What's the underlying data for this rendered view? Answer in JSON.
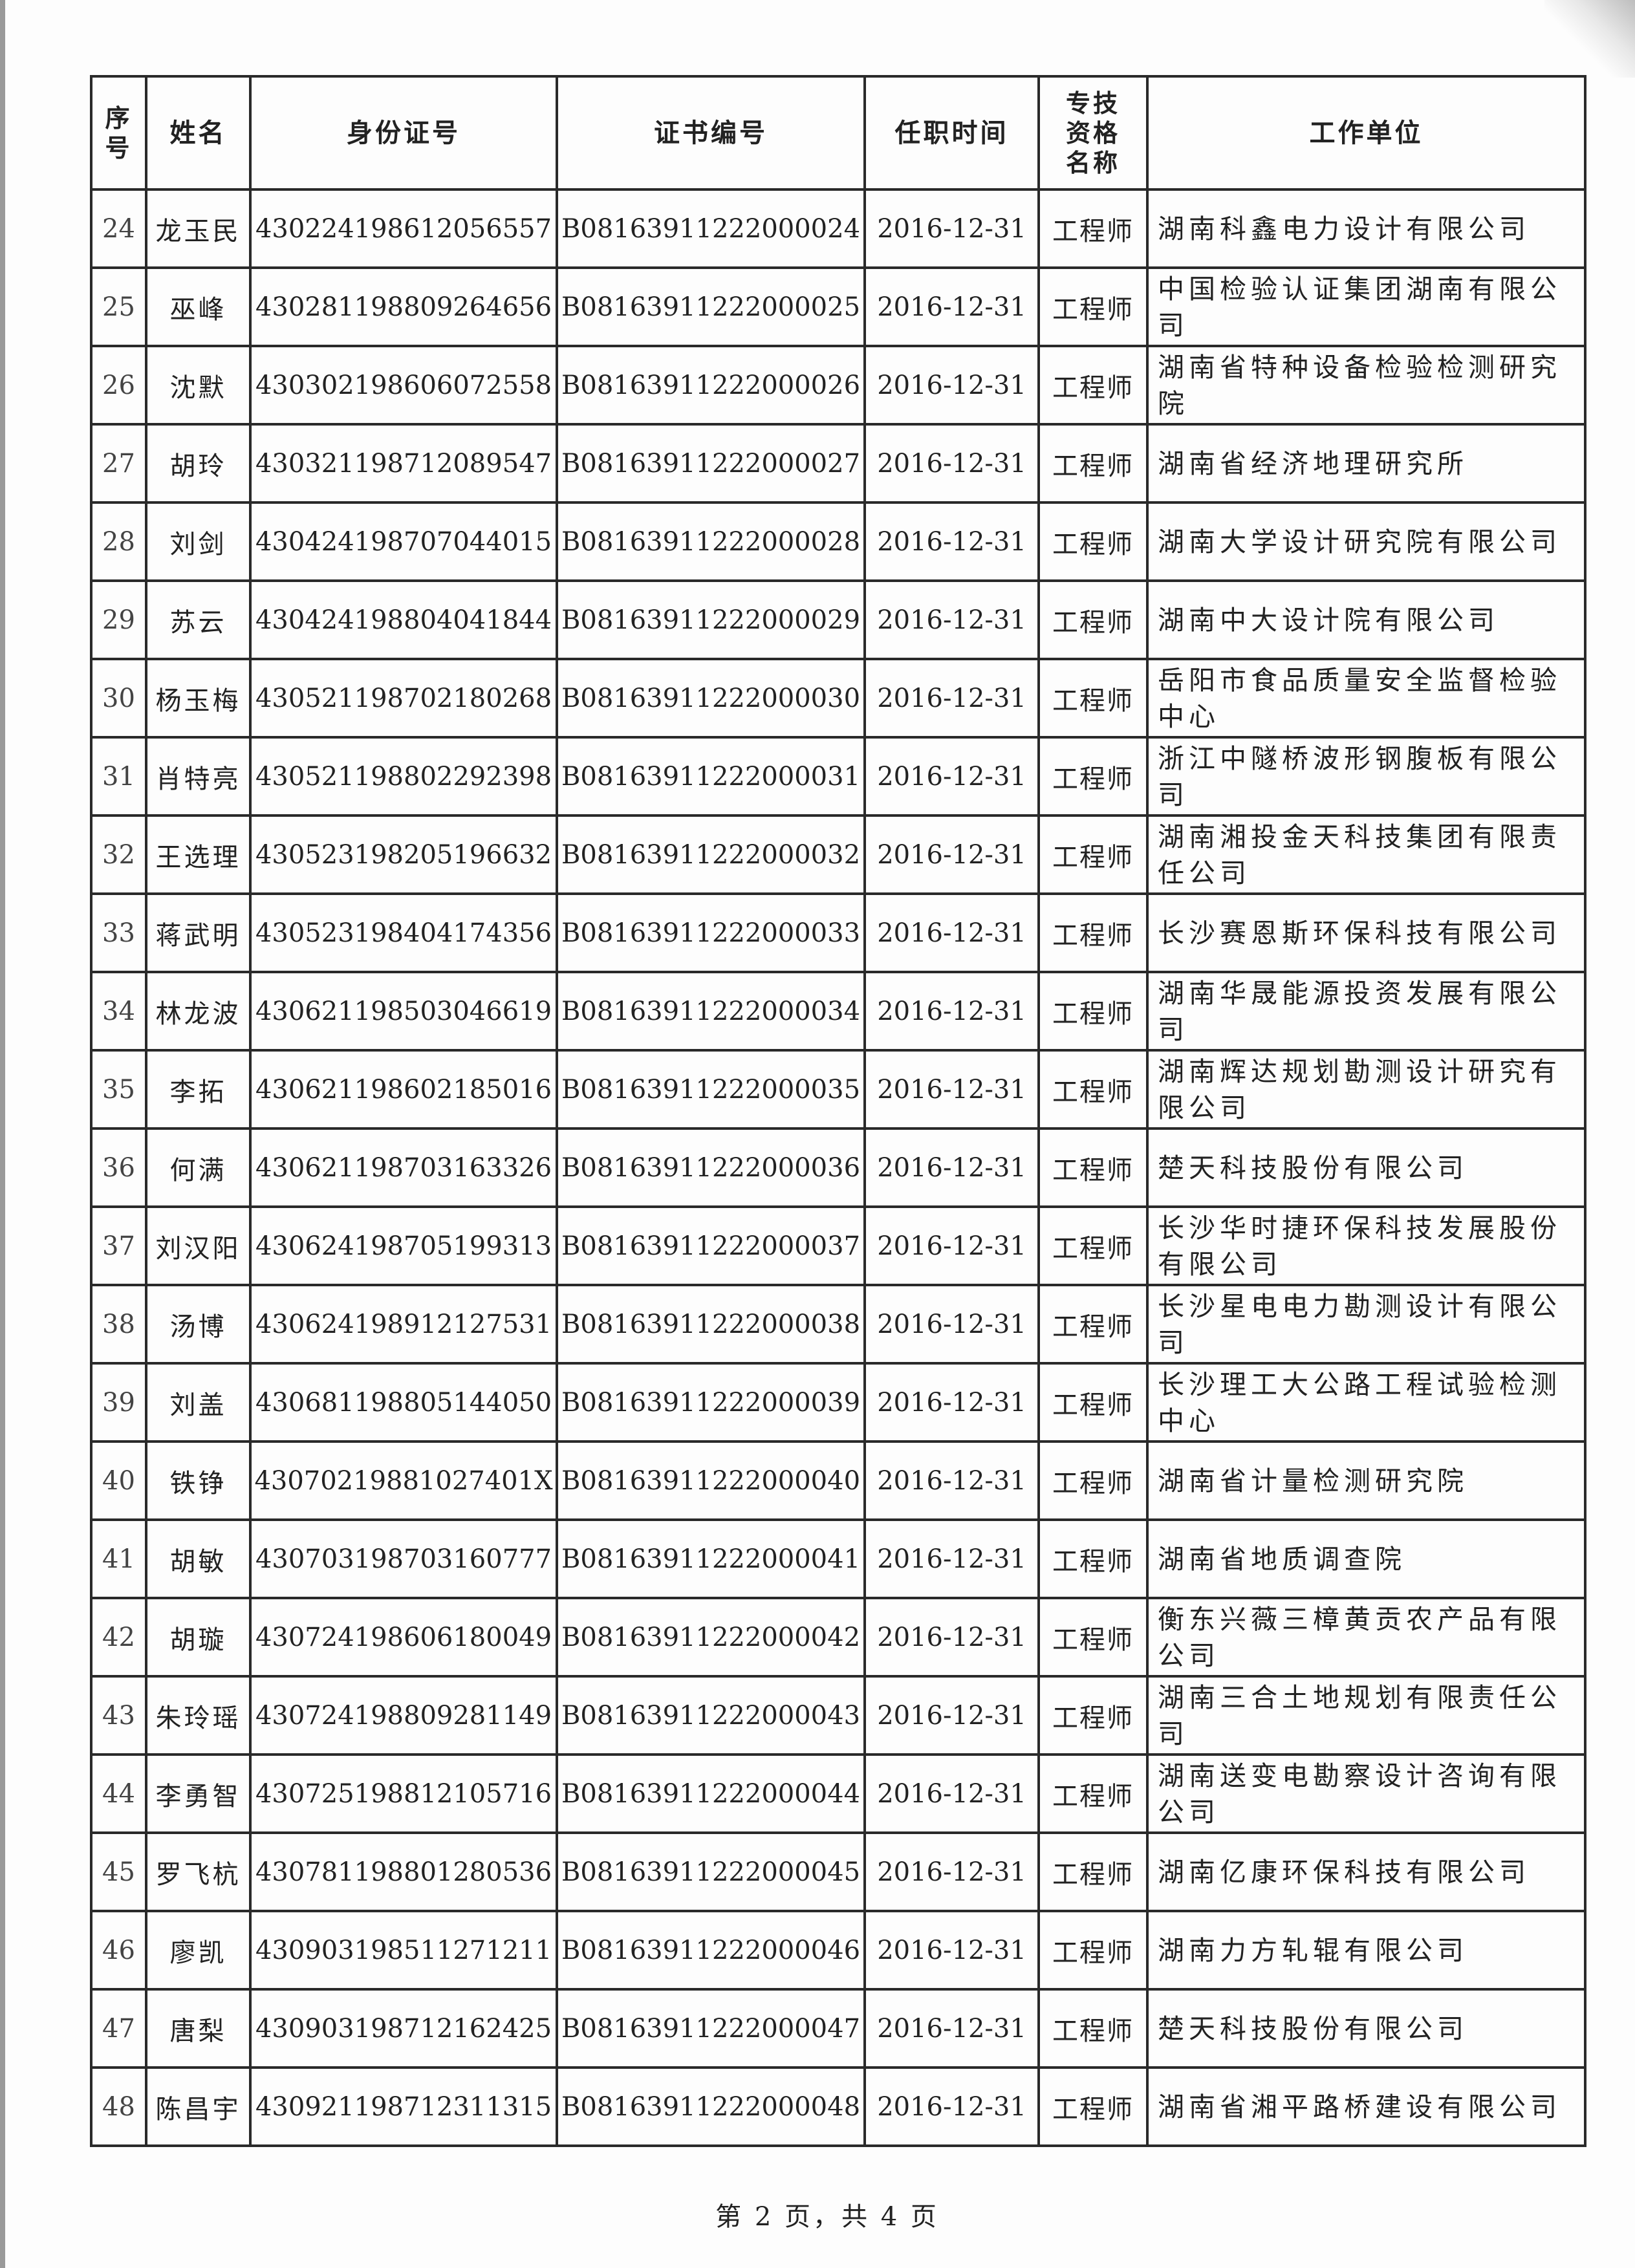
{
  "table": {
    "headers": {
      "seq": "序号",
      "name": "姓名",
      "id_number": "身份证号",
      "cert_number": "证书编号",
      "appointment_date": "任职时间",
      "qualification": "专技资格名称",
      "workplace": "工作单位"
    },
    "rows": [
      {
        "seq": "24",
        "name": "龙玉民",
        "id_number": "430224198612056557",
        "cert_number": "B08163911222000024",
        "appointment_date": "2016-12-31",
        "qualification": "工程师",
        "workplace": "湖南科鑫电力设计有限公司"
      },
      {
        "seq": "25",
        "name": "巫峰",
        "id_number": "430281198809264656",
        "cert_number": "B08163911222000025",
        "appointment_date": "2016-12-31",
        "qualification": "工程师",
        "workplace": "中国检验认证集团湖南有限公司"
      },
      {
        "seq": "26",
        "name": "沈默",
        "id_number": "430302198606072558",
        "cert_number": "B08163911222000026",
        "appointment_date": "2016-12-31",
        "qualification": "工程师",
        "workplace": "湖南省特种设备检验检测研究院"
      },
      {
        "seq": "27",
        "name": "胡玲",
        "id_number": "430321198712089547",
        "cert_number": "B08163911222000027",
        "appointment_date": "2016-12-31",
        "qualification": "工程师",
        "workplace": "湖南省经济地理研究所"
      },
      {
        "seq": "28",
        "name": "刘剑",
        "id_number": "430424198707044015",
        "cert_number": "B08163911222000028",
        "appointment_date": "2016-12-31",
        "qualification": "工程师",
        "workplace": "湖南大学设计研究院有限公司"
      },
      {
        "seq": "29",
        "name": "苏云",
        "id_number": "430424198804041844",
        "cert_number": "B08163911222000029",
        "appointment_date": "2016-12-31",
        "qualification": "工程师",
        "workplace": "湖南中大设计院有限公司"
      },
      {
        "seq": "30",
        "name": "杨玉梅",
        "id_number": "430521198702180268",
        "cert_number": "B08163911222000030",
        "appointment_date": "2016-12-31",
        "qualification": "工程师",
        "workplace": "岳阳市食品质量安全监督检验中心"
      },
      {
        "seq": "31",
        "name": "肖特亮",
        "id_number": "430521198802292398",
        "cert_number": "B08163911222000031",
        "appointment_date": "2016-12-31",
        "qualification": "工程师",
        "workplace": "浙江中隧桥波形钢腹板有限公司"
      },
      {
        "seq": "32",
        "name": "王选理",
        "id_number": "430523198205196632",
        "cert_number": "B08163911222000032",
        "appointment_date": "2016-12-31",
        "qualification": "工程师",
        "workplace": "湖南湘投金天科技集团有限责任公司"
      },
      {
        "seq": "33",
        "name": "蒋武明",
        "id_number": "430523198404174356",
        "cert_number": "B08163911222000033",
        "appointment_date": "2016-12-31",
        "qualification": "工程师",
        "workplace": "长沙赛恩斯环保科技有限公司"
      },
      {
        "seq": "34",
        "name": "林龙波",
        "id_number": "430621198503046619",
        "cert_number": "B08163911222000034",
        "appointment_date": "2016-12-31",
        "qualification": "工程师",
        "workplace": "湖南华晟能源投资发展有限公司"
      },
      {
        "seq": "35",
        "name": "李拓",
        "id_number": "430621198602185016",
        "cert_number": "B08163911222000035",
        "appointment_date": "2016-12-31",
        "qualification": "工程师",
        "workplace": "湖南辉达规划勘测设计研究有限公司"
      },
      {
        "seq": "36",
        "name": "何满",
        "id_number": "430621198703163326",
        "cert_number": "B08163911222000036",
        "appointment_date": "2016-12-31",
        "qualification": "工程师",
        "workplace": "楚天科技股份有限公司"
      },
      {
        "seq": "37",
        "name": "刘汉阳",
        "id_number": "430624198705199313",
        "cert_number": "B08163911222000037",
        "appointment_date": "2016-12-31",
        "qualification": "工程师",
        "workplace": "长沙华时捷环保科技发展股份有限公司"
      },
      {
        "seq": "38",
        "name": "汤博",
        "id_number": "430624198912127531",
        "cert_number": "B08163911222000038",
        "appointment_date": "2016-12-31",
        "qualification": "工程师",
        "workplace": "长沙星电电力勘测设计有限公司"
      },
      {
        "seq": "39",
        "name": "刘盖",
        "id_number": "430681198805144050",
        "cert_number": "B08163911222000039",
        "appointment_date": "2016-12-31",
        "qualification": "工程师",
        "workplace": "长沙理工大公路工程试验检测中心"
      },
      {
        "seq": "40",
        "name": "铁铮",
        "id_number": "43070219881027401X",
        "cert_number": "B08163911222000040",
        "appointment_date": "2016-12-31",
        "qualification": "工程师",
        "workplace": "湖南省计量检测研究院"
      },
      {
        "seq": "41",
        "name": "胡敏",
        "id_number": "430703198703160777",
        "cert_number": "B08163911222000041",
        "appointment_date": "2016-12-31",
        "qualification": "工程师",
        "workplace": "湖南省地质调查院"
      },
      {
        "seq": "42",
        "name": "胡璇",
        "id_number": "430724198606180049",
        "cert_number": "B08163911222000042",
        "appointment_date": "2016-12-31",
        "qualification": "工程师",
        "workplace": "衡东兴薇三樟黄贡农产品有限公司"
      },
      {
        "seq": "43",
        "name": "朱玲瑶",
        "id_number": "430724198809281149",
        "cert_number": "B08163911222000043",
        "appointment_date": "2016-12-31",
        "qualification": "工程师",
        "workplace": "湖南三合土地规划有限责任公司"
      },
      {
        "seq": "44",
        "name": "李勇智",
        "id_number": "430725198812105716",
        "cert_number": "B08163911222000044",
        "appointment_date": "2016-12-31",
        "qualification": "工程师",
        "workplace": "湖南送变电勘察设计咨询有限公司"
      },
      {
        "seq": "45",
        "name": "罗飞杭",
        "id_number": "430781198801280536",
        "cert_number": "B08163911222000045",
        "appointment_date": "2016-12-31",
        "qualification": "工程师",
        "workplace": "湖南亿康环保科技有限公司"
      },
      {
        "seq": "46",
        "name": "廖凯",
        "id_number": "430903198511271211",
        "cert_number": "B08163911222000046",
        "appointment_date": "2016-12-31",
        "qualification": "工程师",
        "workplace": "湖南力方轧辊有限公司"
      },
      {
        "seq": "47",
        "name": "唐梨",
        "id_number": "430903198712162425",
        "cert_number": "B08163911222000047",
        "appointment_date": "2016-12-31",
        "qualification": "工程师",
        "workplace": "楚天科技股份有限公司"
      },
      {
        "seq": "48",
        "name": "陈昌宇",
        "id_number": "430921198712311315",
        "cert_number": "B08163911222000048",
        "appointment_date": "2016-12-31",
        "qualification": "工程师",
        "workplace": "湖南省湘平路桥建设有限公司"
      }
    ]
  },
  "footer": {
    "page_info": "第 2 页，共 4 页"
  }
}
